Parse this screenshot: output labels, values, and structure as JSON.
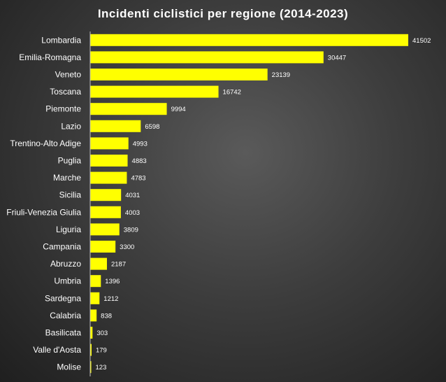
{
  "chart_data": {
    "type": "bar",
    "orientation": "horizontal",
    "title": "Incidenti ciclistici per regione (2014-2023)",
    "xlabel": "",
    "ylabel": "",
    "categories": [
      "Lombardia",
      "Emilia-Romagna",
      "Veneto",
      "Toscana",
      "Piemonte",
      "Lazio",
      "Trentino-Alto Adige",
      "Puglia",
      "Marche",
      "Sicilia",
      "Friuli-Venezia Giulia",
      "Liguria",
      "Campania",
      "Abruzzo",
      "Umbria",
      "Sardegna",
      "Calabria",
      "Basilicata",
      "Valle d'Aosta",
      "Molise"
    ],
    "values": [
      41502,
      30447,
      23139,
      16742,
      9994,
      6598,
      4993,
      4883,
      4783,
      4031,
      4003,
      3809,
      3300,
      2187,
      1396,
      1212,
      838,
      303,
      179,
      123
    ],
    "xlim": [
      0,
      41502
    ],
    "grid": false,
    "legend": "none",
    "colors": {
      "bar": "#ffff00",
      "text": "#ffffff",
      "background": "#3d3d3d"
    }
  }
}
